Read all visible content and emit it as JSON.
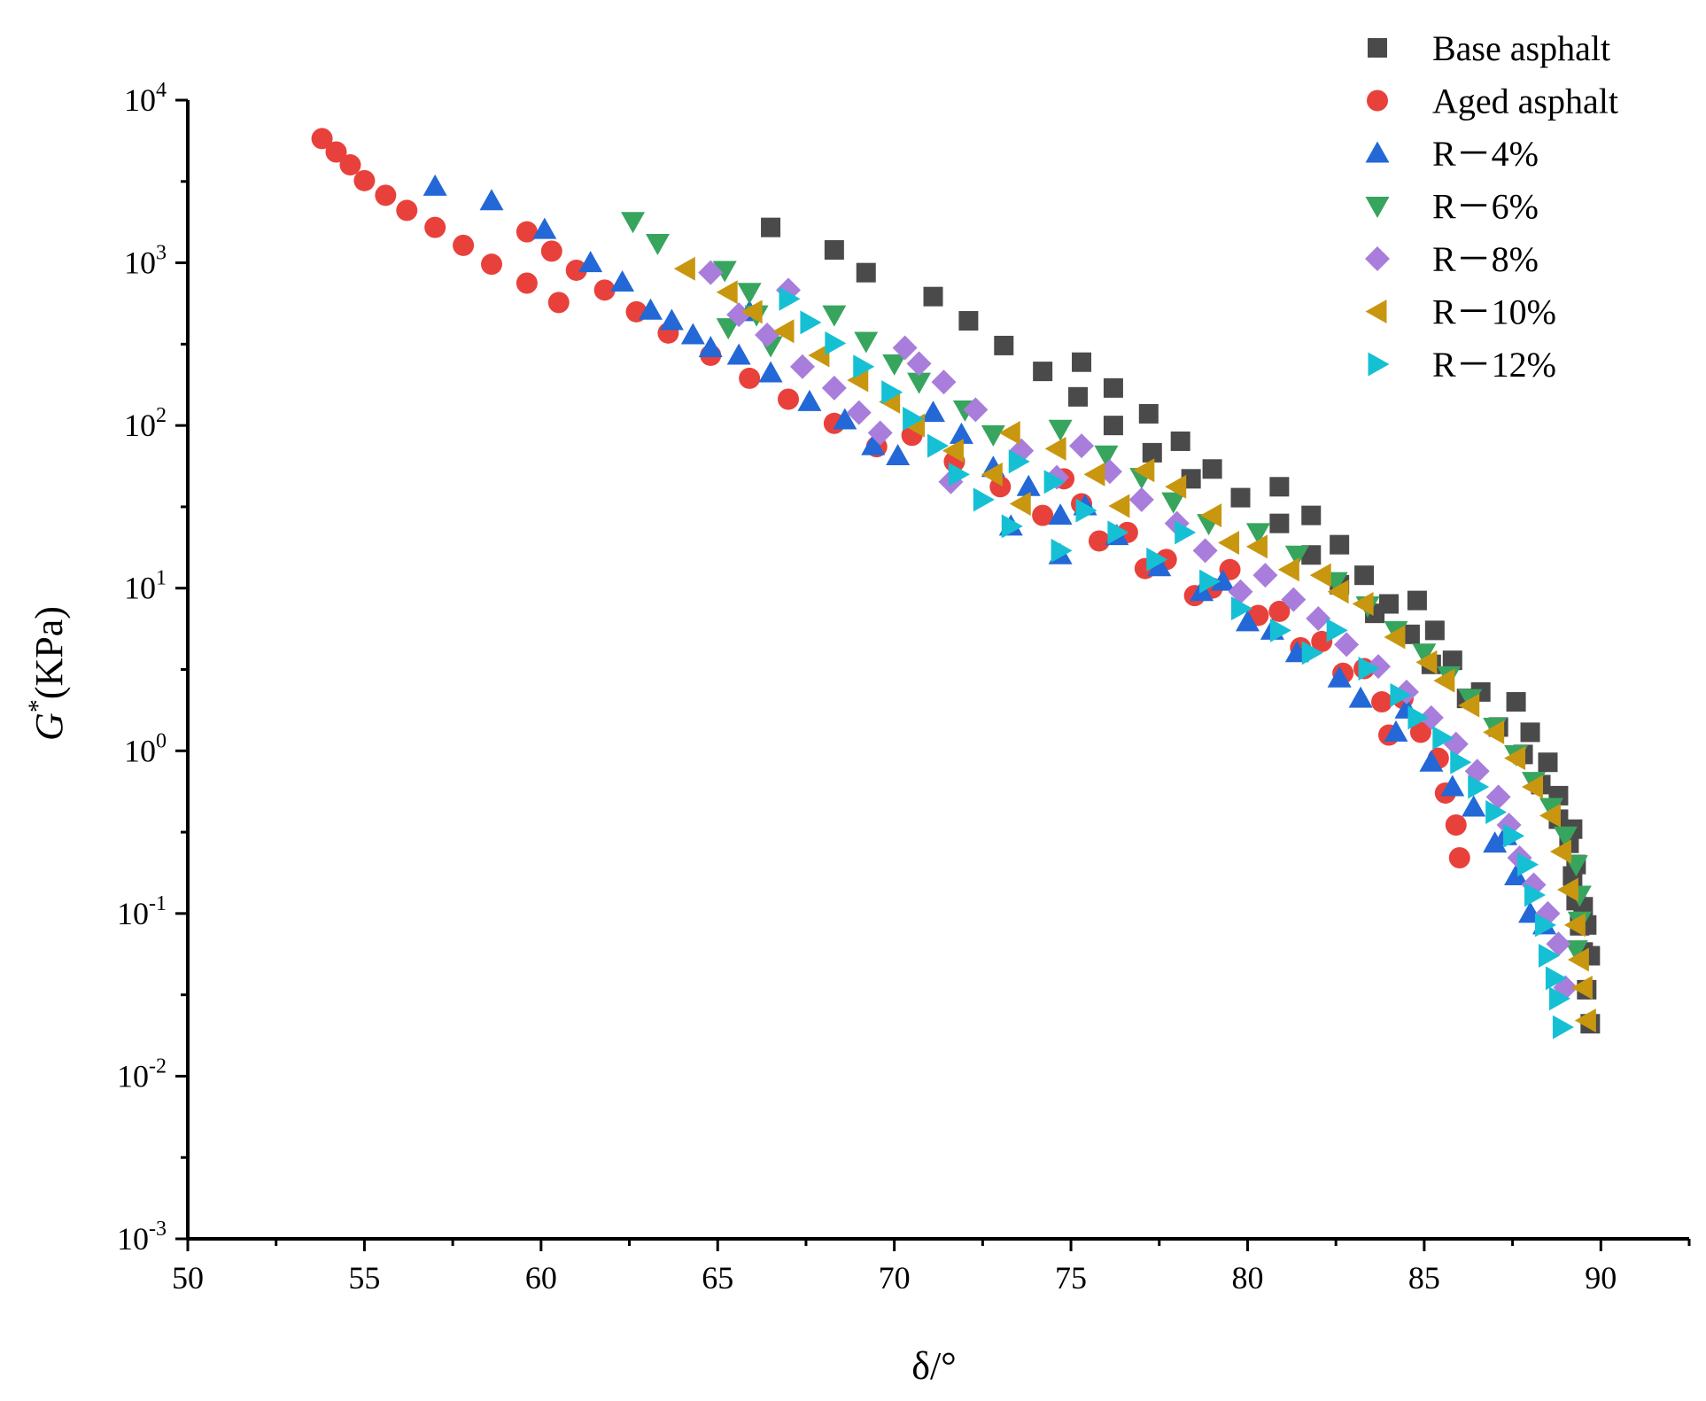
{
  "chart_data": {
    "type": "scatter",
    "xlabel": "δ/°",
    "ylabel": {
      "main": "G",
      "sup": "*",
      "unit": "(KPa)"
    },
    "xlim": [
      50,
      92.5
    ],
    "ylim_log10": [
      -3,
      4
    ],
    "yscale": "log",
    "x_ticks": [
      {
        "value": 50,
        "label": "50"
      },
      {
        "value": 55,
        "label": "55"
      },
      {
        "value": 60,
        "label": "60"
      },
      {
        "value": 65,
        "label": "65"
      },
      {
        "value": 70,
        "label": "70"
      },
      {
        "value": 75,
        "label": "75"
      },
      {
        "value": 80,
        "label": "80"
      },
      {
        "value": 85,
        "label": "85"
      },
      {
        "value": 90,
        "label": "90"
      }
    ],
    "y_ticks": [
      {
        "exp": -3,
        "base": "10",
        "sup": "-3"
      },
      {
        "exp": -2,
        "base": "10",
        "sup": "-2"
      },
      {
        "exp": -1,
        "base": "10",
        "sup": "-1"
      },
      {
        "exp": 0,
        "base": "10",
        "sup": "0"
      },
      {
        "exp": 1,
        "base": "10",
        "sup": "1"
      },
      {
        "exp": 2,
        "base": "10",
        "sup": "2"
      },
      {
        "exp": 3,
        "base": "10",
        "sup": "3"
      },
      {
        "exp": 4,
        "base": "10",
        "sup": "4"
      }
    ],
    "legend_position": "top-right",
    "series": [
      {
        "name": "Base asphalt",
        "marker": "square",
        "color": "#4a4a4a",
        "points": [
          [
            66.5,
            1650
          ],
          [
            68.3,
            1200
          ],
          [
            69.2,
            870
          ],
          [
            71.1,
            620
          ],
          [
            72.1,
            440
          ],
          [
            73.1,
            310
          ],
          [
            74.2,
            215
          ],
          [
            75.3,
            245
          ],
          [
            75.2,
            150
          ],
          [
            76.2,
            170
          ],
          [
            76.2,
            100
          ],
          [
            77.2,
            118
          ],
          [
            77.3,
            68
          ],
          [
            78.1,
            80
          ],
          [
            78.4,
            47
          ],
          [
            79.0,
            54
          ],
          [
            79.8,
            36
          ],
          [
            80.9,
            42
          ],
          [
            80.9,
            25
          ],
          [
            81.8,
            28
          ],
          [
            81.8,
            16
          ],
          [
            82.6,
            18.5
          ],
          [
            82.6,
            10.5
          ],
          [
            83.3,
            12
          ],
          [
            83.6,
            7
          ],
          [
            84.0,
            8
          ],
          [
            84.6,
            5.2
          ],
          [
            84.8,
            8.4
          ],
          [
            85.3,
            5.5
          ],
          [
            85.2,
            3.4
          ],
          [
            85.8,
            3.6
          ],
          [
            86.2,
            2.1
          ],
          [
            86.6,
            2.3
          ],
          [
            87.1,
            1.4
          ],
          [
            87.6,
            2.0
          ],
          [
            87.8,
            0.95
          ],
          [
            88.0,
            1.3
          ],
          [
            88.3,
            0.62
          ],
          [
            88.5,
            0.85
          ],
          [
            88.8,
            0.38
          ],
          [
            88.8,
            0.53
          ],
          [
            89.1,
            0.27
          ],
          [
            89.2,
            0.33
          ],
          [
            89.2,
            0.17
          ],
          [
            89.3,
            0.2
          ],
          [
            89.3,
            0.12
          ],
          [
            89.4,
            0.084
          ],
          [
            89.5,
            0.11
          ],
          [
            89.5,
            0.058
          ],
          [
            89.6,
            0.085
          ],
          [
            89.6,
            0.034
          ],
          [
            89.7,
            0.055
          ],
          [
            89.7,
            0.021
          ]
        ]
      },
      {
        "name": "Aged asphalt",
        "marker": "circle",
        "color": "#e8413c",
        "points": [
          [
            53.8,
            5800
          ],
          [
            54.2,
            4800
          ],
          [
            54.6,
            4000
          ],
          [
            55.0,
            3200
          ],
          [
            55.6,
            2600
          ],
          [
            56.2,
            2100
          ],
          [
            57.0,
            1650
          ],
          [
            57.8,
            1280
          ],
          [
            58.6,
            980
          ],
          [
            59.6,
            750
          ],
          [
            59.6,
            1550
          ],
          [
            60.3,
            1180
          ],
          [
            60.5,
            570
          ],
          [
            61.0,
            900
          ],
          [
            61.8,
            680
          ],
          [
            62.7,
            500
          ],
          [
            63.6,
            370
          ],
          [
            64.8,
            270
          ],
          [
            65.9,
            195
          ],
          [
            67.0,
            145
          ],
          [
            68.3,
            103
          ],
          [
            69.5,
            74
          ],
          [
            70.5,
            87
          ],
          [
            71.7,
            60
          ],
          [
            73.0,
            42
          ],
          [
            74.2,
            28
          ],
          [
            74.8,
            47
          ],
          [
            75.3,
            33
          ],
          [
            75.8,
            19.5
          ],
          [
            76.6,
            22
          ],
          [
            77.1,
            13.2
          ],
          [
            77.7,
            15
          ],
          [
            78.5,
            9
          ],
          [
            79.0,
            10
          ],
          [
            79.5,
            13
          ],
          [
            80.3,
            6.8
          ],
          [
            80.9,
            7.2
          ],
          [
            81.5,
            4.3
          ],
          [
            82.1,
            4.7
          ],
          [
            82.7,
            3
          ],
          [
            83.3,
            3.2
          ],
          [
            83.8,
            2
          ],
          [
            84.4,
            2.1
          ],
          [
            84.0,
            1.25
          ],
          [
            84.9,
            1.3
          ],
          [
            85.4,
            0.9
          ],
          [
            85.6,
            0.55
          ],
          [
            85.9,
            0.35
          ],
          [
            86.0,
            0.22
          ]
        ]
      },
      {
        "name": "R－4%",
        "marker": "triangle-up",
        "color": "#2368d6",
        "points": [
          [
            57.0,
            2950
          ],
          [
            58.6,
            2400
          ],
          [
            60.1,
            1600
          ],
          [
            61.4,
            1000
          ],
          [
            62.3,
            760
          ],
          [
            63.1,
            510
          ],
          [
            63.7,
            440
          ],
          [
            64.3,
            360
          ],
          [
            64.8,
            300
          ],
          [
            65.6,
            270
          ],
          [
            65.9,
            500
          ],
          [
            66.5,
            210
          ],
          [
            67.6,
            140
          ],
          [
            68.6,
            108
          ],
          [
            69.4,
            75
          ],
          [
            70.1,
            65
          ],
          [
            71.1,
            120
          ],
          [
            71.9,
            88
          ],
          [
            72.8,
            55
          ],
          [
            73.3,
            24
          ],
          [
            73.8,
            42
          ],
          [
            74.7,
            28
          ],
          [
            74.7,
            16
          ],
          [
            75.4,
            32
          ],
          [
            76.3,
            21
          ],
          [
            77.5,
            13.5
          ],
          [
            78.7,
            9.5
          ],
          [
            79.3,
            11
          ],
          [
            80.0,
            6.2
          ],
          [
            80.7,
            5.5
          ],
          [
            81.4,
            4
          ],
          [
            82.6,
            2.8
          ],
          [
            83.2,
            2.1
          ],
          [
            84.5,
            1.8
          ],
          [
            84.2,
            1.3
          ],
          [
            85.2,
            0.85
          ],
          [
            85.8,
            0.6
          ],
          [
            86.4,
            0.45
          ],
          [
            87.0,
            0.27
          ],
          [
            87.3,
            0.3
          ],
          [
            87.6,
            0.17
          ],
          [
            88.0,
            0.1
          ],
          [
            88.4,
            0.085
          ]
        ]
      },
      {
        "name": "R－6%",
        "marker": "triangle-down",
        "color": "#37a55d",
        "points": [
          [
            62.6,
            1800
          ],
          [
            63.3,
            1320
          ],
          [
            65.2,
            900
          ],
          [
            65.9,
            660
          ],
          [
            66.1,
            480
          ],
          [
            65.3,
            400
          ],
          [
            66.5,
            310
          ],
          [
            68.3,
            480
          ],
          [
            69.2,
            330
          ],
          [
            70.0,
            240
          ],
          [
            70.7,
            185
          ],
          [
            72.0,
            125
          ],
          [
            72.8,
            88
          ],
          [
            74.7,
            95
          ],
          [
            76.0,
            66
          ],
          [
            77.0,
            48
          ],
          [
            77.9,
            34
          ],
          [
            78.9,
            25
          ],
          [
            80.3,
            22
          ],
          [
            81.4,
            16
          ],
          [
            82.5,
            11
          ],
          [
            83.4,
            7.8
          ],
          [
            84.2,
            5.5
          ],
          [
            85.0,
            4
          ],
          [
            85.7,
            2.9
          ],
          [
            86.3,
            2.1
          ],
          [
            87.0,
            1.4
          ],
          [
            87.6,
            0.95
          ],
          [
            88.1,
            0.65
          ],
          [
            88.6,
            0.45
          ],
          [
            89.0,
            0.3
          ],
          [
            89.3,
            0.2
          ],
          [
            89.4,
            0.13
          ],
          [
            89.4,
            0.09
          ],
          [
            89.3,
            0.06
          ]
        ]
      },
      {
        "name": "R－8%",
        "marker": "diamond",
        "color": "#a87ddb",
        "points": [
          [
            64.8,
            870
          ],
          [
            65.6,
            480
          ],
          [
            66.4,
            360
          ],
          [
            67.0,
            680
          ],
          [
            67.4,
            230
          ],
          [
            68.3,
            170
          ],
          [
            69.0,
            120
          ],
          [
            69.6,
            90
          ],
          [
            70.3,
            300
          ],
          [
            70.7,
            240
          ],
          [
            71.4,
            185
          ],
          [
            72.3,
            125
          ],
          [
            71.6,
            45
          ],
          [
            73.6,
            70
          ],
          [
            74.6,
            48
          ],
          [
            75.3,
            75
          ],
          [
            76.1,
            52
          ],
          [
            77.0,
            35
          ],
          [
            78.0,
            25
          ],
          [
            78.8,
            17
          ],
          [
            79.8,
            9.5
          ],
          [
            80.5,
            12
          ],
          [
            81.3,
            8.5
          ],
          [
            82.0,
            6.5
          ],
          [
            82.8,
            4.5
          ],
          [
            83.7,
            3.3
          ],
          [
            84.5,
            2.3
          ],
          [
            85.2,
            1.6
          ],
          [
            85.9,
            1.1
          ],
          [
            86.5,
            0.75
          ],
          [
            87.1,
            0.52
          ],
          [
            87.4,
            0.35
          ],
          [
            87.7,
            0.22
          ],
          [
            88.1,
            0.15
          ],
          [
            88.5,
            0.1
          ],
          [
            88.8,
            0.065
          ],
          [
            89.0,
            0.035
          ]
        ]
      },
      {
        "name": "R－10%",
        "marker": "triangle-left",
        "color": "#c8970f",
        "points": [
          [
            64.1,
            920
          ],
          [
            65.3,
            660
          ],
          [
            66.0,
            500
          ],
          [
            66.9,
            380
          ],
          [
            67.9,
            270
          ],
          [
            69.0,
            190
          ],
          [
            69.9,
            140
          ],
          [
            70.6,
            100
          ],
          [
            71.7,
            70
          ],
          [
            72.8,
            50
          ],
          [
            73.6,
            33
          ],
          [
            73.3,
            90
          ],
          [
            74.6,
            72
          ],
          [
            75.7,
            50
          ],
          [
            76.4,
            32
          ],
          [
            77.1,
            53
          ],
          [
            78.0,
            42
          ],
          [
            79.0,
            28
          ],
          [
            79.5,
            19
          ],
          [
            80.3,
            18
          ],
          [
            81.2,
            13
          ],
          [
            82.1,
            12
          ],
          [
            82.6,
            9.5
          ],
          [
            83.3,
            8
          ],
          [
            84.2,
            5
          ],
          [
            85.1,
            3.5
          ],
          [
            85.6,
            2.7
          ],
          [
            86.3,
            1.9
          ],
          [
            87.0,
            1.3
          ],
          [
            87.6,
            0.9
          ],
          [
            88.1,
            0.6
          ],
          [
            88.6,
            0.4
          ],
          [
            88.9,
            0.24
          ],
          [
            89.1,
            0.14
          ],
          [
            89.3,
            0.085
          ],
          [
            89.4,
            0.052
          ],
          [
            89.5,
            0.035
          ],
          [
            89.6,
            0.022
          ]
        ]
      },
      {
        "name": "R－12%",
        "marker": "triangle-right",
        "color": "#15c0d4",
        "points": [
          [
            67.0,
            600
          ],
          [
            67.6,
            430
          ],
          [
            68.3,
            320
          ],
          [
            69.1,
            230
          ],
          [
            69.9,
            160
          ],
          [
            70.5,
            110
          ],
          [
            71.2,
            75
          ],
          [
            71.8,
            50
          ],
          [
            72.5,
            35
          ],
          [
            73.3,
            24
          ],
          [
            74.7,
            17
          ],
          [
            73.5,
            60
          ],
          [
            74.5,
            45
          ],
          [
            75.4,
            30
          ],
          [
            76.3,
            22
          ],
          [
            77.4,
            15
          ],
          [
            78.2,
            22
          ],
          [
            78.9,
            11
          ],
          [
            79.8,
            7.5
          ],
          [
            80.9,
            5.5
          ],
          [
            81.8,
            4
          ],
          [
            82.5,
            5.5
          ],
          [
            83.4,
            3.2
          ],
          [
            84.3,
            2.2
          ],
          [
            84.8,
            1.6
          ],
          [
            85.5,
            1.2
          ],
          [
            86.0,
            0.85
          ],
          [
            86.5,
            0.6
          ],
          [
            87.0,
            0.42
          ],
          [
            87.5,
            0.3
          ],
          [
            87.9,
            0.2
          ],
          [
            88.1,
            0.13
          ],
          [
            88.4,
            0.085
          ],
          [
            88.5,
            0.055
          ],
          [
            88.7,
            0.04
          ],
          [
            88.8,
            0.03
          ],
          [
            88.9,
            0.02
          ]
        ]
      }
    ]
  }
}
